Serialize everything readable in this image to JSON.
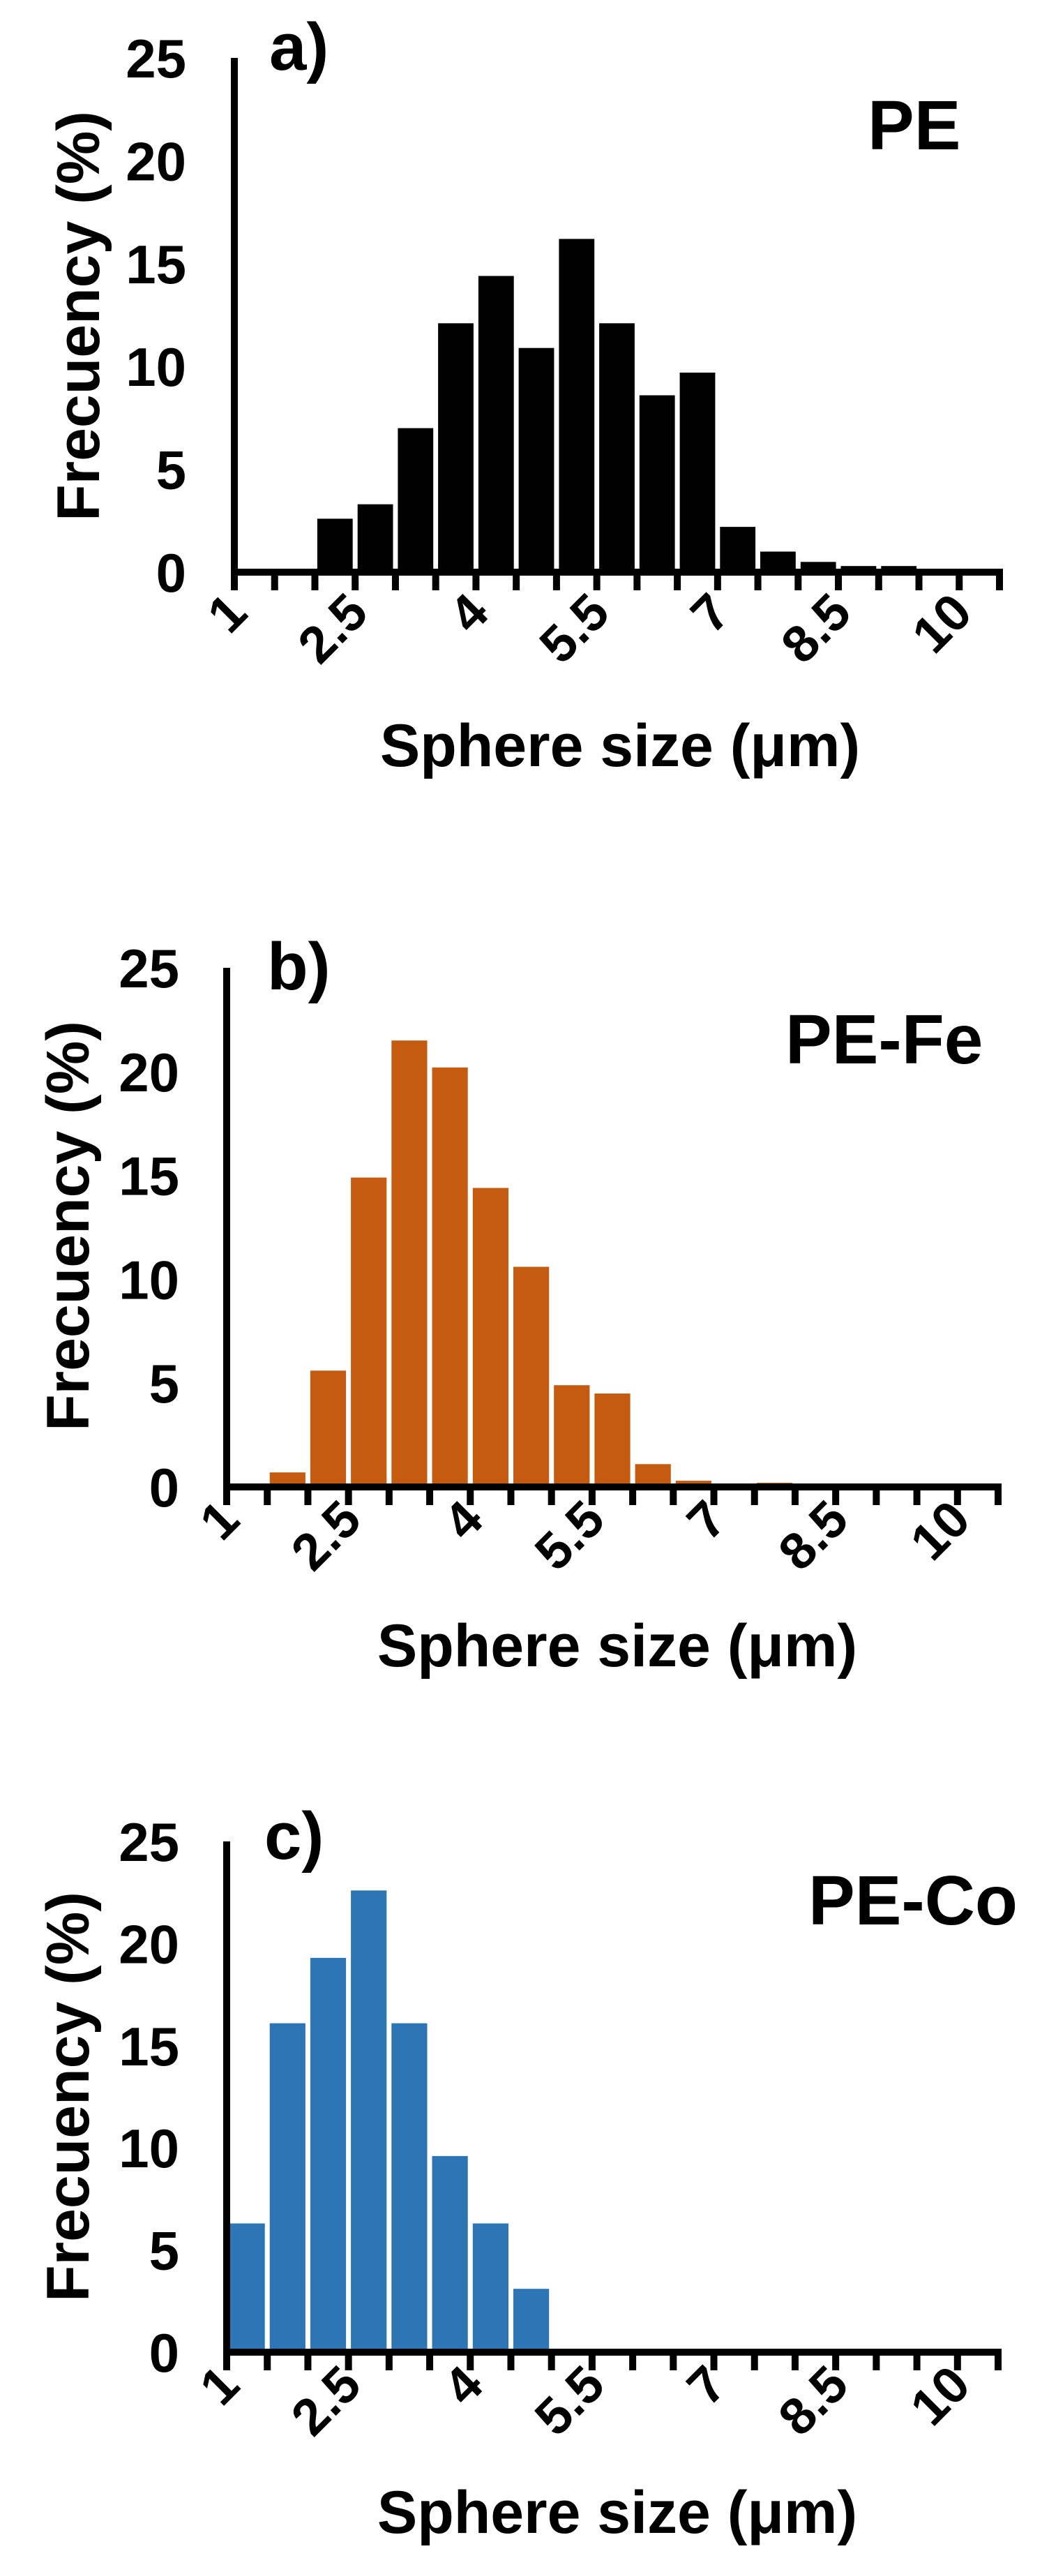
{
  "figure": {
    "panels": [
      {
        "letter": "a)",
        "label": "PE",
        "ylabel": "Frecuency (%)",
        "xlabel": "Sphere size (μm)"
      },
      {
        "letter": "b)",
        "label": "PE-Fe",
        "ylabel": "Frecuency (%)",
        "xlabel": "Sphere size (μm)"
      },
      {
        "letter": "c)",
        "label": "PE-Co",
        "ylabel": "Frecuency (%)",
        "xlabel": "Sphere size (μm)"
      }
    ],
    "y_ticks": [
      "0",
      "5",
      "10",
      "15",
      "20",
      "25"
    ],
    "x_tick_labels": [
      "1",
      "2.5",
      "4",
      "5.5",
      "7",
      "8.5",
      "10"
    ]
  },
  "chart_data": [
    {
      "type": "bar",
      "title": "a) PE",
      "xlabel": "Sphere size (μm)",
      "ylabel": "Frecuency (%)",
      "ylim": [
        0,
        25
      ],
      "y_ticks": [
        0,
        5,
        10,
        15,
        20,
        25
      ],
      "x_tick_labels": [
        "1",
        "2.5",
        "4",
        "5.5",
        "7",
        "8.5",
        "10"
      ],
      "categories": [
        1,
        1.5,
        2,
        2.5,
        3,
        3.5,
        4,
        4.5,
        5,
        5.5,
        6,
        6.5,
        7,
        7.5,
        8,
        8.5,
        9,
        9.5,
        10
      ],
      "values": [
        0,
        0,
        2.6,
        3.3,
        7.0,
        12.1,
        14.4,
        10.9,
        16.2,
        12.1,
        8.6,
        9.7,
        2.2,
        1.0,
        0.5,
        0.3,
        0.3,
        0.1,
        0.1
      ],
      "color": "#000000",
      "grid": false,
      "legend": false
    },
    {
      "type": "bar",
      "title": "b) PE-Fe",
      "xlabel": "Sphere size (μm)",
      "ylabel": "Frecuency (%)",
      "ylim": [
        0,
        25
      ],
      "y_ticks": [
        0,
        5,
        10,
        15,
        20,
        25
      ],
      "x_tick_labels": [
        "1",
        "2.5",
        "4",
        "5.5",
        "7",
        "8.5",
        "10"
      ],
      "categories": [
        1,
        1.5,
        2,
        2.5,
        3,
        3.5,
        4,
        4.5,
        5,
        5.5,
        6,
        6.5,
        7,
        7.5,
        8,
        8.5,
        9,
        9.5,
        10
      ],
      "values": [
        0,
        0.7,
        5.6,
        14.9,
        21.5,
        20.2,
        14.4,
        10.6,
        4.9,
        4.5,
        1.1,
        0.3,
        0,
        0.2,
        0,
        0,
        0,
        0,
        0
      ],
      "color": "#C55A11",
      "grid": false,
      "legend": false
    },
    {
      "type": "bar",
      "title": "c) PE-Co",
      "xlabel": "Sphere size (μm)",
      "ylabel": "Frecuency (%)",
      "ylim": [
        0,
        25
      ],
      "y_ticks": [
        0,
        5,
        10,
        15,
        20,
        25
      ],
      "x_tick_labels": [
        "1",
        "2.5",
        "4",
        "5.5",
        "7",
        "8.5",
        "10"
      ],
      "categories": [
        1,
        1.5,
        2,
        2.5,
        3,
        3.5,
        4,
        4.5,
        5,
        5.5,
        6,
        6.5,
        7,
        7.5,
        8,
        8.5,
        9,
        9.5,
        10
      ],
      "values": [
        6.3,
        16.1,
        19.3,
        22.6,
        16.1,
        9.6,
        6.3,
        3.1,
        0,
        0,
        0,
        0,
        0,
        0,
        0,
        0,
        0,
        0,
        0
      ],
      "color": "#2E75B6",
      "grid": false,
      "legend": false
    }
  ]
}
